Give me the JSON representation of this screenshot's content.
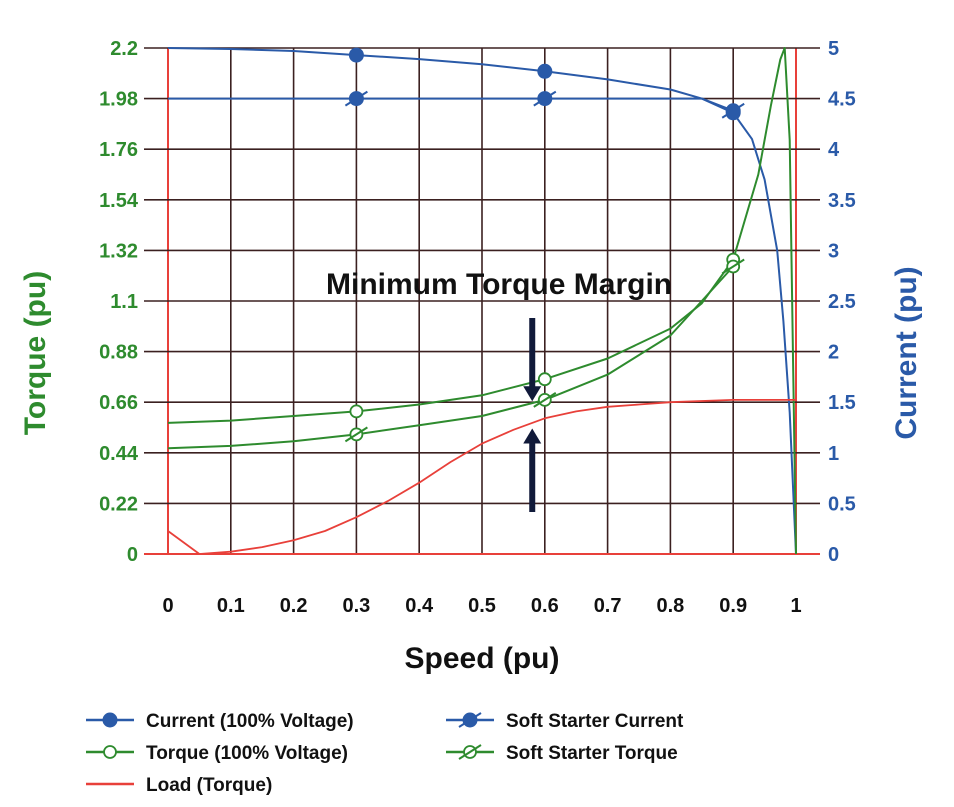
{
  "chart_data": {
    "type": "line",
    "title": "",
    "xlabel": "Speed (pu)",
    "ylabel_left": "Torque (pu)",
    "ylabel_right": "Current (pu)",
    "xlim": [
      0,
      1
    ],
    "ylim_left": [
      0,
      2.2
    ],
    "ylim_right": [
      0,
      5
    ],
    "x_ticks": [
      "0",
      "0.1",
      "0.2",
      "0.3",
      "0.4",
      "0.5",
      "0.6",
      "0.7",
      "0.8",
      "0.9",
      "1"
    ],
    "y_left_ticks": [
      "0",
      "0.22",
      "0.44",
      "0.66",
      "0.88",
      "1.1",
      "1.32",
      "1.54",
      "1.76",
      "1.98",
      "2.2"
    ],
    "y_right_ticks": [
      "0",
      "0.5",
      "1",
      "1.5",
      "2",
      "2.5",
      "3",
      "3.5",
      "4",
      "4.5",
      "5"
    ],
    "grid": true,
    "legend_position": "bottom",
    "annotation": {
      "text": "Minimum Torque Margin",
      "arrow_x": 0.58,
      "arrow_top_y": 0.66,
      "arrow_bottom_y": 0.55
    },
    "colors": {
      "current": "#2a5aa8",
      "torque": "#2e8b2e",
      "load": "#e8403a",
      "grid": "#3b2020",
      "axis": "#e8403a"
    },
    "series": [
      {
        "name": "Current (100% Voltage)",
        "axis": "right",
        "marker": "filled-circle",
        "x": [
          0,
          0.1,
          0.2,
          0.3,
          0.4,
          0.5,
          0.6,
          0.7,
          0.8,
          0.85,
          0.9,
          0.93,
          0.95,
          0.97,
          0.98,
          0.99,
          1.0
        ],
        "y": [
          5,
          4.99,
          4.97,
          4.93,
          4.89,
          4.84,
          4.77,
          4.69,
          4.59,
          4.5,
          4.36,
          4.1,
          3.7,
          3.0,
          2.3,
          1.4,
          0
        ],
        "markers_at": [
          0.3,
          0.6,
          0.9
        ]
      },
      {
        "name": "Soft Starter Current",
        "axis": "right",
        "marker": "slashed-filled-circle",
        "x": [
          0,
          0.3,
          0.6,
          0.85,
          0.9
        ],
        "y": [
          4.5,
          4.5,
          4.5,
          4.5,
          4.38
        ],
        "markers_at": [
          0.3,
          0.6,
          0.9
        ]
      },
      {
        "name": "Torque (100% Voltage)",
        "axis": "left",
        "marker": "hollow-circle",
        "x": [
          0,
          0.1,
          0.2,
          0.3,
          0.4,
          0.5,
          0.6,
          0.7,
          0.8,
          0.85,
          0.9,
          0.94,
          0.96,
          0.975,
          0.982,
          0.99,
          1.0
        ],
        "y": [
          0.57,
          0.58,
          0.6,
          0.62,
          0.65,
          0.69,
          0.76,
          0.85,
          0.98,
          1.09,
          1.28,
          1.65,
          1.95,
          2.15,
          2.2,
          1.8,
          0
        ],
        "markers_at": [
          0.3,
          0.6,
          0.9
        ]
      },
      {
        "name": "Soft Starter Torque",
        "axis": "left",
        "marker": "slashed-hollow-circle",
        "x": [
          0,
          0.1,
          0.2,
          0.3,
          0.4,
          0.5,
          0.6,
          0.7,
          0.8,
          0.9
        ],
        "y": [
          0.46,
          0.47,
          0.49,
          0.52,
          0.56,
          0.6,
          0.67,
          0.78,
          0.95,
          1.25
        ],
        "markers_at": [
          0.3,
          0.6,
          0.9
        ]
      },
      {
        "name": "Load (Torque)",
        "axis": "left",
        "marker": "none",
        "x": [
          0,
          0.05,
          0.1,
          0.15,
          0.2,
          0.25,
          0.3,
          0.35,
          0.4,
          0.45,
          0.5,
          0.55,
          0.6,
          0.65,
          0.7,
          0.75,
          0.8,
          0.9,
          1.0
        ],
        "y": [
          0.1,
          0.0,
          0.01,
          0.03,
          0.06,
          0.1,
          0.16,
          0.23,
          0.31,
          0.4,
          0.48,
          0.54,
          0.59,
          0.62,
          0.64,
          0.65,
          0.66,
          0.67,
          0.67
        ]
      }
    ]
  },
  "legend": [
    {
      "label": "Current (100% Voltage)",
      "key": "current"
    },
    {
      "label": "Soft Starter Current",
      "key": "soft_current"
    },
    {
      "label": "Torque (100% Voltage)",
      "key": "torque"
    },
    {
      "label": "Soft Starter Torque",
      "key": "soft_torque"
    },
    {
      "label": "Load (Torque)",
      "key": "load"
    }
  ]
}
